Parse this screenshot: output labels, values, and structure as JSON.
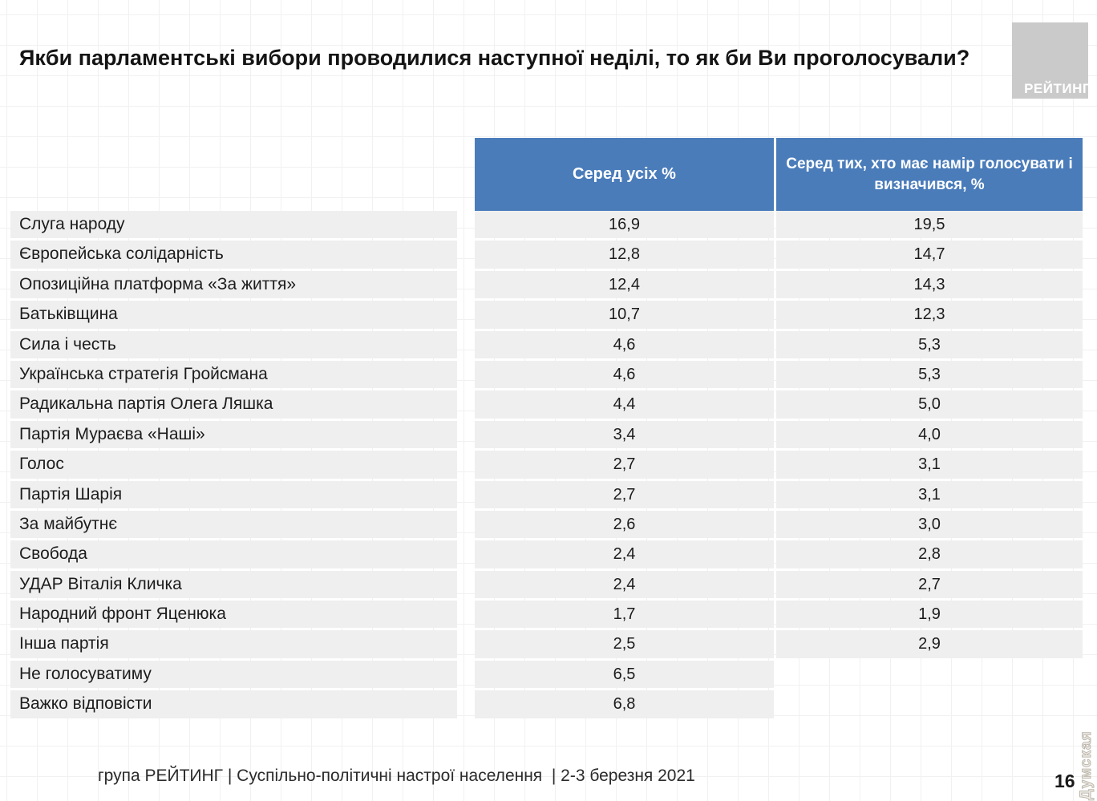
{
  "title": "Якби парламентські вибори проводилися наступної неділі, то як би Ви проголосували?",
  "logo": {
    "text": "РЕЙТИНГ"
  },
  "table": {
    "col_all_header": "Серед усіх %",
    "col_decided_header": "Серед тих, хто має намір голосувати і визначився, %"
  },
  "chart_data": {
    "type": "table",
    "columns": [
      "",
      "Серед усіх %",
      "Серед тих, хто має намір голосувати і визначився, %"
    ],
    "rows": [
      {
        "party": "Слуга народу",
        "all": "16,9",
        "decided": "19,5"
      },
      {
        "party": "Європейська солідарність",
        "all": "12,8",
        "decided": "14,7"
      },
      {
        "party": "Опозиційна платформа «За життя»",
        "all": "12,4",
        "decided": "14,3"
      },
      {
        "party": "Батьківщина",
        "all": "10,7",
        "decided": "12,3"
      },
      {
        "party": "Сила і честь",
        "all": "4,6",
        "decided": "5,3"
      },
      {
        "party": "Українська стратегія Гройсмана",
        "all": "4,6",
        "decided": "5,3"
      },
      {
        "party": "Радикальна партія Олега Ляшка",
        "all": "4,4",
        "decided": "5,0"
      },
      {
        "party": "Партія Мураєва «Наші»",
        "all": "3,4",
        "decided": "4,0"
      },
      {
        "party": "Голос",
        "all": "2,7",
        "decided": "3,1"
      },
      {
        "party": "Партія Шарія",
        "all": "2,7",
        "decided": "3,1"
      },
      {
        "party": "За майбутнє",
        "all": "2,6",
        "decided": "3,0"
      },
      {
        "party": "Свобода",
        "all": "2,4",
        "decided": "2,8"
      },
      {
        "party": "УДАР Віталія Кличка",
        "all": "2,4",
        "decided": "2,7"
      },
      {
        "party": "Народний фронт Яценюка",
        "all": "1,7",
        "decided": "1,9"
      },
      {
        "party": "Інша партія",
        "all": "2,5",
        "decided": "2,9"
      },
      {
        "party": "Не голосуватиму",
        "all": "6,5",
        "decided": null
      },
      {
        "party": "Важко відповісти",
        "all": "6,8",
        "decided": null
      }
    ]
  },
  "footer": {
    "text": "група РЕЙТИНГ | Суспільно-політичні настрої населення  | 2-3 березня 2021",
    "page_number": "16"
  },
  "watermark": "Думская",
  "colors": {
    "header_blue": "#4A7CBA",
    "row_gray": "#EFEFEF",
    "logo_gray": "#CACACA"
  }
}
